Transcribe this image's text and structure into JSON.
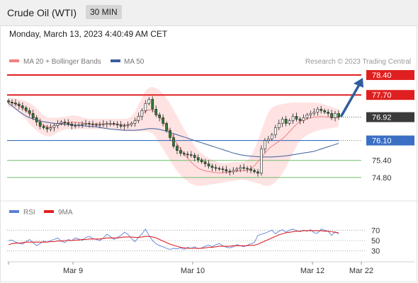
{
  "header": {
    "instrument": "Crude Oil (WTI)",
    "timeframe": "30 MIN"
  },
  "date_line": "Monday, March 13, 2023 4:40:49 AM CET",
  "legend": {
    "bollinger": "MA 20 + Bollinger Bands",
    "ma50": "MA 50",
    "copyright": "Research © 2023 Trading Central",
    "rsi": "RSI",
    "rsi_ma": "9MA"
  },
  "colors": {
    "resistance": "#e02020",
    "support": "#3a6fc4",
    "target_line": "#6abf69",
    "bollinger_fill": "#ffd9d9",
    "ma20": "#f08080",
    "ma50": "#3a5f9e",
    "candle_up": "#ffffff",
    "candle_down": "#2e7d32",
    "arrow": "#2f5d9e",
    "current_box": "#3a3a3a",
    "rsi": "#5a7fd6",
    "rsi_ma": "#e02020"
  },
  "chart_data": [
    {
      "type": "candlestick",
      "ylim": [
        74.2,
        78.6
      ],
      "x_ticks": [
        "Mar 9",
        "Mar 10",
        "Mar 12",
        "Mar 22"
      ],
      "levels": [
        {
          "value": 78.4,
          "label": "78.40",
          "kind": "resistance"
        },
        {
          "value": 77.7,
          "label": "77.70",
          "kind": "resistance"
        },
        {
          "value": 76.92,
          "label": "76.92",
          "kind": "current"
        },
        {
          "value": 76.1,
          "label": "76.10",
          "kind": "support"
        },
        {
          "value": 75.4,
          "label": "75.40",
          "kind": "target"
        },
        {
          "value": 74.8,
          "label": "74.80",
          "kind": "target"
        }
      ],
      "close": [
        77.45,
        77.42,
        77.38,
        77.32,
        77.25,
        77.15,
        77.05,
        76.9,
        76.75,
        76.6,
        76.55,
        76.5,
        76.55,
        76.62,
        76.7,
        76.75,
        76.72,
        76.68,
        76.62,
        76.62,
        76.65,
        76.68,
        76.7,
        76.68,
        76.66,
        76.65,
        76.66,
        76.68,
        76.7,
        76.7,
        76.68,
        76.65,
        76.6,
        76.62,
        76.65,
        76.7,
        76.8,
        76.95,
        77.15,
        77.4,
        77.55,
        77.2,
        77.0,
        76.9,
        76.7,
        76.45,
        76.2,
        75.9,
        75.75,
        75.65,
        75.62,
        75.6,
        75.58,
        75.5,
        75.42,
        75.35,
        75.28,
        75.2,
        75.15,
        75.12,
        75.1,
        75.08,
        75.02,
        75.0,
        75.05,
        75.1,
        75.15,
        75.12,
        75.1,
        75.05,
        75.0,
        74.95,
        75.8,
        76.1,
        76.15,
        76.3,
        76.55,
        76.7,
        76.85,
        76.7,
        76.8,
        76.95,
        76.85,
        76.8,
        76.9,
        77.0,
        77.05,
        77.1,
        77.2,
        77.15,
        77.1,
        77.05,
        76.9,
        77.05,
        76.92
      ],
      "bollinger": {
        "upper": [
          77.6,
          77.6,
          77.58,
          77.55,
          77.52,
          77.48,
          77.42,
          77.34,
          77.24,
          77.1,
          76.98,
          76.92,
          76.9,
          76.9,
          76.9,
          76.92,
          76.94,
          76.96,
          76.98,
          76.98,
          76.96,
          76.92,
          76.88,
          76.86,
          76.86,
          76.86,
          76.86,
          76.86,
          76.86,
          76.86,
          76.86,
          76.86,
          76.86,
          76.86,
          76.88,
          76.95,
          77.1,
          77.35,
          77.6,
          77.84,
          77.96,
          77.98,
          77.94,
          77.86,
          77.74,
          77.58,
          77.4,
          77.18,
          76.95,
          76.72,
          76.5,
          76.3,
          76.1,
          75.92,
          75.76,
          75.64,
          75.55,
          75.48,
          75.42,
          75.36,
          75.32,
          75.3,
          75.3,
          75.32,
          75.34,
          75.35,
          75.35,
          75.35,
          75.4,
          75.55,
          75.8,
          76.1,
          76.45,
          76.8,
          77.1,
          77.25,
          77.32,
          77.36,
          77.38,
          77.4,
          77.42,
          77.44,
          77.44,
          77.44,
          77.44,
          77.44,
          77.44,
          77.44,
          77.42,
          77.4,
          77.36,
          77.32,
          77.28,
          77.24,
          77.2
        ],
        "lower": [
          77.3,
          77.25,
          77.18,
          77.08,
          76.96,
          76.82,
          76.68,
          76.56,
          76.45,
          76.36,
          76.28,
          76.24,
          76.24,
          76.3,
          76.38,
          76.44,
          76.48,
          76.5,
          76.5,
          76.5,
          76.5,
          76.5,
          76.5,
          76.5,
          76.5,
          76.5,
          76.5,
          76.5,
          76.5,
          76.5,
          76.48,
          76.46,
          76.44,
          76.42,
          76.42,
          76.42,
          76.42,
          76.42,
          76.42,
          76.42,
          76.4,
          76.35,
          76.2,
          76.0,
          75.8,
          75.6,
          75.4,
          75.2,
          75.02,
          74.88,
          74.76,
          74.66,
          74.58,
          74.53,
          74.5,
          74.5,
          74.52,
          74.54,
          74.56,
          74.58,
          74.6,
          74.62,
          74.64,
          74.66,
          74.68,
          74.7,
          74.72,
          74.72,
          74.7,
          74.66,
          74.62,
          74.6,
          74.55,
          74.5,
          74.5,
          74.55,
          74.65,
          74.78,
          74.95,
          75.15,
          75.4,
          75.65,
          75.9,
          76.1,
          76.2,
          76.28,
          76.35,
          76.4,
          76.44,
          76.48,
          76.5,
          76.52,
          76.54,
          76.56,
          76.6
        ]
      },
      "ma50": [
        77.4,
        77.32,
        77.22,
        77.12,
        77.04,
        76.96,
        76.9,
        76.86,
        76.82,
        76.79,
        76.76,
        76.74,
        76.72,
        76.7,
        76.69,
        76.68,
        76.67,
        76.66,
        76.65,
        76.64,
        76.63,
        76.62,
        76.61,
        76.6,
        76.59,
        76.58,
        76.56,
        76.54,
        76.52,
        76.5,
        76.49,
        76.48,
        76.47,
        76.46,
        76.46,
        76.46,
        76.46,
        76.47,
        76.48,
        76.5,
        76.52,
        76.52,
        76.51,
        76.49,
        76.46,
        76.42,
        76.38,
        76.34,
        76.3,
        76.26,
        76.22,
        76.18,
        76.14,
        76.1,
        76.06,
        76.02,
        75.98,
        75.94,
        75.9,
        75.86,
        75.82,
        75.78,
        75.74,
        75.7,
        75.66,
        75.63,
        75.6,
        75.58,
        75.56,
        75.55,
        75.54,
        75.53,
        75.52,
        75.52,
        75.52,
        75.52,
        75.53,
        75.54,
        75.55,
        75.56,
        75.58,
        75.6,
        75.62,
        75.64,
        75.66,
        75.68,
        75.7,
        75.72,
        75.76,
        75.8,
        75.84,
        75.88,
        75.92,
        75.96,
        76.0
      ]
    },
    {
      "type": "line",
      "title": "RSI",
      "ylim": [
        20,
        80
      ],
      "y_ticks": [
        70,
        50,
        30
      ],
      "series": [
        {
          "name": "RSI",
          "values": [
            50,
            51,
            47,
            45,
            43,
            48,
            52,
            46,
            40,
            44,
            49,
            47,
            50,
            52,
            55,
            49,
            46,
            52,
            50,
            55,
            53,
            50,
            56,
            58,
            54,
            52,
            50,
            55,
            62,
            58,
            52,
            56,
            60,
            66,
            62,
            54,
            48,
            56,
            63,
            72,
            60,
            50,
            44,
            40,
            38,
            35,
            33,
            35,
            34,
            36,
            33,
            37,
            35,
            38,
            34,
            36,
            39,
            41,
            38,
            42,
            44,
            40,
            37,
            36,
            38,
            42,
            40,
            38,
            41,
            44,
            46,
            60,
            62,
            64,
            67,
            70,
            63,
            68,
            71,
            66,
            70,
            72,
            69,
            67,
            70,
            68,
            71,
            65,
            64,
            72,
            70,
            68,
            60,
            67,
            63
          ]
        },
        {
          "name": "9MA",
          "values": [
            42,
            44,
            45,
            45,
            46,
            47,
            47,
            47,
            47,
            47,
            47,
            47,
            48,
            48,
            49,
            49,
            50,
            50,
            50,
            51,
            51,
            52,
            52,
            53,
            53,
            53,
            53,
            54,
            55,
            55,
            55,
            55,
            56,
            57,
            57,
            57,
            56,
            56,
            57,
            58,
            58,
            57,
            55,
            52,
            49,
            46,
            43,
            41,
            39,
            37,
            36,
            35,
            35,
            35,
            35,
            35,
            36,
            37,
            37,
            38,
            39,
            39,
            39,
            39,
            40,
            40,
            40,
            40,
            40,
            41,
            41,
            43,
            46,
            49,
            52,
            55,
            58,
            61,
            63,
            65,
            66,
            67,
            68,
            68,
            69,
            69,
            69,
            69,
            69,
            69,
            68,
            68,
            67,
            66,
            65
          ]
        }
      ]
    }
  ],
  "rsi_ticks": [
    "70",
    "50",
    "30"
  ],
  "level_labels": [
    "78.40",
    "77.70",
    "76.92",
    "76.10",
    "75.40",
    "74.80"
  ]
}
